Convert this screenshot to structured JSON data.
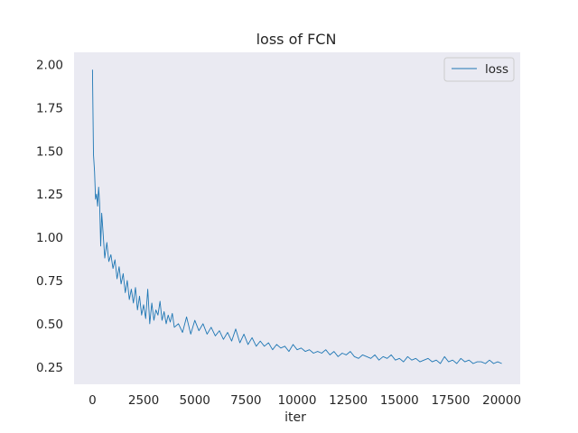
{
  "chart_data": {
    "type": "line",
    "title": "loss of FCN",
    "xlabel": "iter",
    "ylabel": "",
    "xlim": [
      -900,
      20900
    ],
    "ylim": [
      0.15,
      2.07
    ],
    "xticks": [
      0,
      2500,
      5000,
      7500,
      10000,
      12500,
      15000,
      17500,
      20000
    ],
    "xtick_labels": [
      "0",
      "2500",
      "5000",
      "7500",
      "10000",
      "12500",
      "15000",
      "17500",
      "20000"
    ],
    "yticks": [
      0.25,
      0.5,
      0.75,
      1.0,
      1.25,
      1.5,
      1.75,
      2.0
    ],
    "ytick_labels": [
      "0.25",
      "0.50",
      "0.75",
      "1.00",
      "1.25",
      "1.50",
      "1.75",
      "2.00"
    ],
    "grid": false,
    "legend": "top-right",
    "colors": {
      "background": "#eaeaf2",
      "line": "#1f77b4"
    },
    "series": [
      {
        "name": "loss",
        "x": [
          0,
          50,
          100,
          150,
          200,
          250,
          300,
          350,
          400,
          450,
          500,
          600,
          700,
          800,
          900,
          1000,
          1100,
          1200,
          1300,
          1400,
          1500,
          1600,
          1700,
          1800,
          1900,
          2000,
          2100,
          2200,
          2300,
          2400,
          2500,
          2600,
          2700,
          2800,
          2900,
          3000,
          3100,
          3200,
          3300,
          3400,
          3500,
          3600,
          3700,
          3800,
          3900,
          4000,
          4200,
          4400,
          4600,
          4800,
          5000,
          5200,
          5400,
          5600,
          5800,
          6000,
          6200,
          6400,
          6600,
          6800,
          7000,
          7200,
          7400,
          7600,
          7800,
          8000,
          8200,
          8400,
          8600,
          8800,
          9000,
          9200,
          9400,
          9600,
          9800,
          10000,
          10200,
          10400,
          10600,
          10800,
          11000,
          11200,
          11400,
          11600,
          11800,
          12000,
          12200,
          12400,
          12600,
          12800,
          13000,
          13200,
          13400,
          13600,
          13800,
          14000,
          14200,
          14400,
          14600,
          14800,
          15000,
          15200,
          15400,
          15600,
          15800,
          16000,
          16200,
          16400,
          16600,
          16800,
          17000,
          17200,
          17400,
          17600,
          17800,
          18000,
          18200,
          18400,
          18600,
          18800,
          19000,
          19200,
          19400,
          19600,
          19800,
          20000
        ],
        "values": [
          1.97,
          1.48,
          1.38,
          1.22,
          1.25,
          1.18,
          1.29,
          1.2,
          0.95,
          1.14,
          1.06,
          0.88,
          0.97,
          0.86,
          0.9,
          0.82,
          0.87,
          0.76,
          0.83,
          0.73,
          0.79,
          0.68,
          0.75,
          0.64,
          0.7,
          0.62,
          0.71,
          0.58,
          0.66,
          0.55,
          0.61,
          0.53,
          0.7,
          0.5,
          0.62,
          0.52,
          0.58,
          0.55,
          0.63,
          0.52,
          0.57,
          0.5,
          0.55,
          0.51,
          0.56,
          0.48,
          0.5,
          0.45,
          0.54,
          0.44,
          0.52,
          0.46,
          0.5,
          0.44,
          0.48,
          0.43,
          0.46,
          0.41,
          0.45,
          0.4,
          0.47,
          0.39,
          0.44,
          0.38,
          0.42,
          0.37,
          0.4,
          0.37,
          0.39,
          0.35,
          0.38,
          0.36,
          0.37,
          0.34,
          0.38,
          0.35,
          0.36,
          0.34,
          0.35,
          0.33,
          0.34,
          0.33,
          0.35,
          0.32,
          0.34,
          0.31,
          0.33,
          0.32,
          0.34,
          0.31,
          0.3,
          0.32,
          0.31,
          0.3,
          0.32,
          0.29,
          0.31,
          0.3,
          0.32,
          0.29,
          0.3,
          0.28,
          0.31,
          0.29,
          0.3,
          0.28,
          0.29,
          0.3,
          0.28,
          0.29,
          0.27,
          0.31,
          0.28,
          0.29,
          0.27,
          0.3,
          0.28,
          0.29,
          0.27,
          0.28,
          0.28,
          0.27,
          0.29,
          0.27,
          0.28,
          0.27
        ]
      }
    ]
  }
}
